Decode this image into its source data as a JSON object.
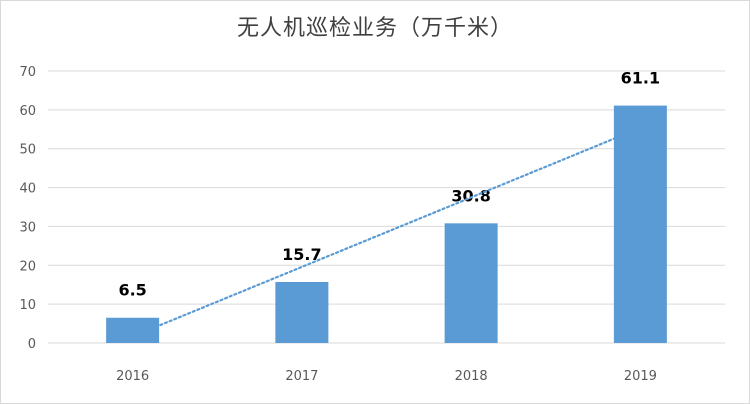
{
  "chart_data": {
    "type": "bar",
    "title": "无人机巡检业务（万千米）",
    "xlabel": "",
    "ylabel": "",
    "categories": [
      "2016",
      "2017",
      "2018",
      "2019"
    ],
    "values": [
      6.5,
      15.7,
      30.8,
      61.1
    ],
    "data_labels": [
      "6.5",
      "15.7",
      "30.8",
      "61.1"
    ],
    "ylim": [
      0,
      70
    ],
    "yticks": [
      "0",
      "10",
      "20",
      "30",
      "40",
      "50",
      "60",
      "70"
    ],
    "grid": true,
    "legend": "none",
    "trendline": "linear-dotted",
    "colors": {
      "bar": "#5b9bd5",
      "trendline": "#5b9bd5",
      "grid": "#d9d9d9"
    }
  }
}
